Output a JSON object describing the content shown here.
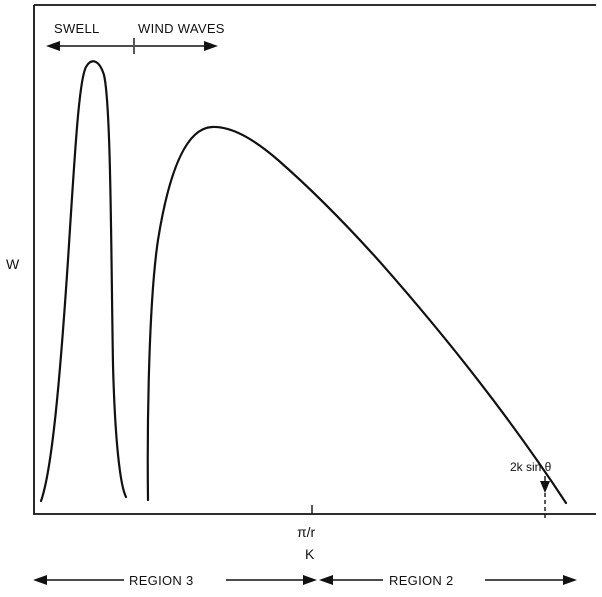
{
  "diagram": {
    "top_labels": {
      "swell": "SWELL",
      "wind_waves": "WIND WAVES"
    },
    "y_axis_label": "W",
    "x_axis_label": "K",
    "x_tick_label": "π/r",
    "annotation": "2k sin θ",
    "regions": {
      "region_3": "REGION 3",
      "region_2": "REGION 2"
    }
  }
}
